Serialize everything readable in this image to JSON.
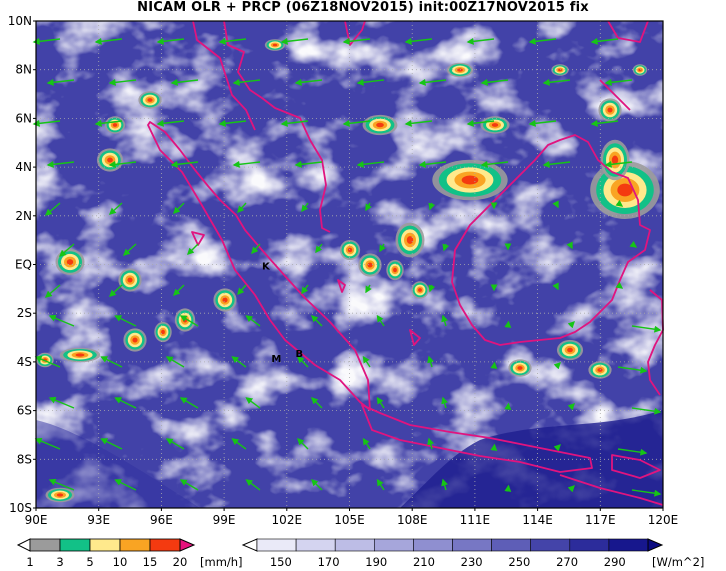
{
  "title": "NICAM OLR + PRCP (06Z18NOV2015) init:00Z17NOV2015 fix",
  "lat_labels": [
    "10N",
    "8N",
    "6N",
    "4N",
    "2N",
    "EQ",
    "2S",
    "4S",
    "6S",
    "8S",
    "10S"
  ],
  "lon_labels": [
    "90E",
    "93E",
    "96E",
    "99E",
    "102E",
    "105E",
    "108E",
    "111E",
    "114E",
    "117E",
    "120E"
  ],
  "map_extent": {
    "lon": [
      90,
      120
    ],
    "lat": [
      -10,
      10
    ]
  },
  "places": [
    {
      "text": "K",
      "lon": 101.0,
      "lat": -0.2
    },
    {
      "text": "M",
      "lon": 101.5,
      "lat": -4.0
    },
    {
      "text": "B",
      "lon": 102.6,
      "lat": -3.8
    }
  ],
  "prcp_colorbar": {
    "ticks": [
      "1",
      "3",
      "5",
      "10",
      "15",
      "20"
    ],
    "unit": "[mm/h]",
    "colors": [
      "#ffffff",
      "#9b9b9b",
      "#12c187",
      "#ffe98c",
      "#f9a423",
      "#f43a10",
      "#e6127d"
    ]
  },
  "olr_colorbar": {
    "ticks": [
      "150",
      "170",
      "190",
      "210",
      "230",
      "250",
      "270",
      "290"
    ],
    "unit": "[W/m^2]",
    "colors": [
      "#ffffff",
      "#eaeaf8",
      "#d4d4f0",
      "#bdbde6",
      "#a6a6db",
      "#8f8fd0",
      "#7777c4",
      "#5e5eb7",
      "#4444a9",
      "#2c2c9b",
      "#17178d",
      "#0a0a80"
    ]
  },
  "colors": {
    "coast": "#e0147f",
    "wind": "#16c416",
    "grid": "#aaaaaa"
  }
}
